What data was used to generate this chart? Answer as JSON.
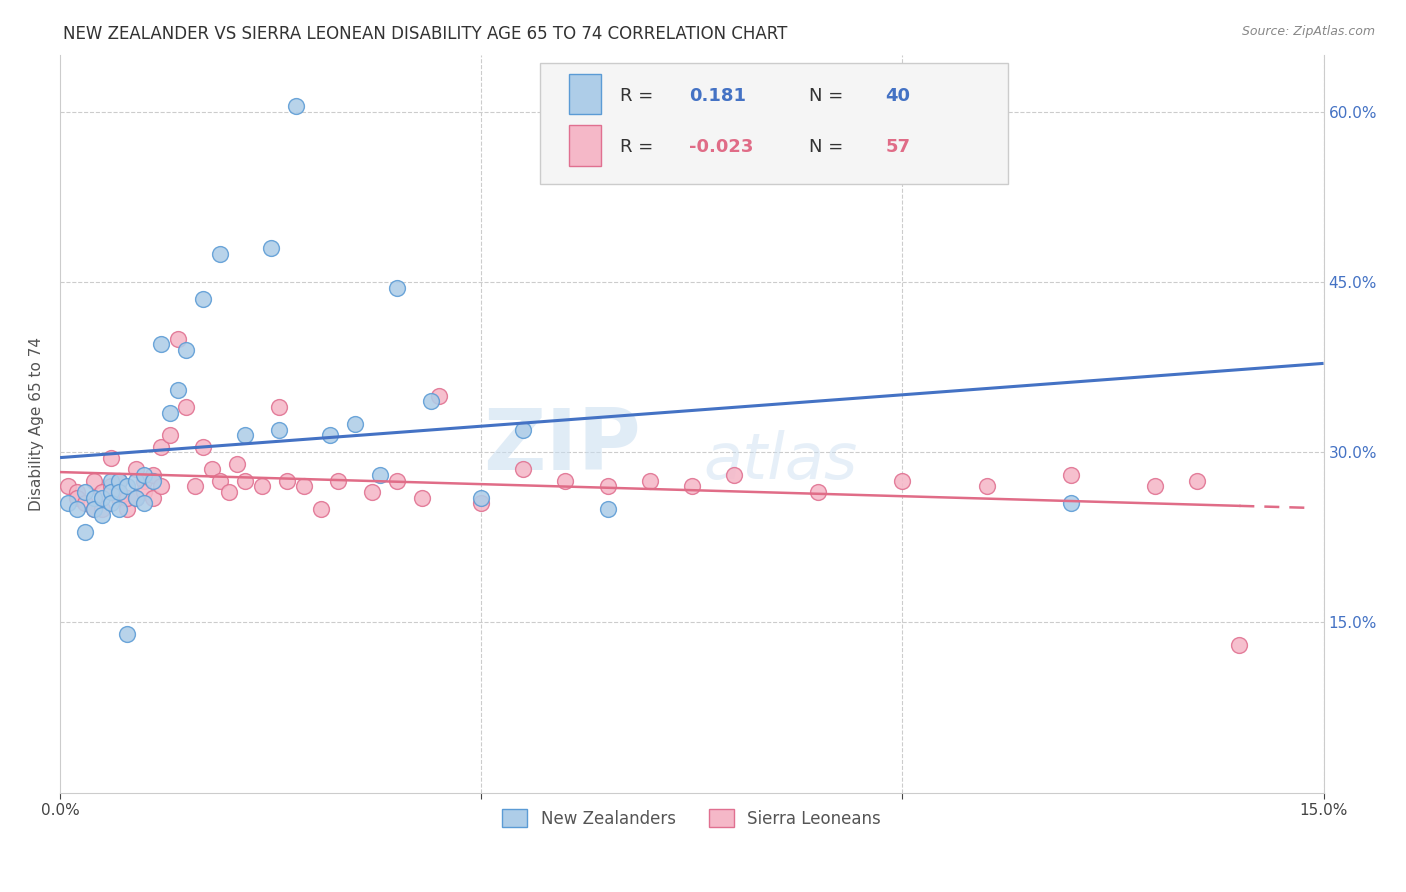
{
  "title": "NEW ZEALANDER VS SIERRA LEONEAN DISABILITY AGE 65 TO 74 CORRELATION CHART",
  "source": "Source: ZipAtlas.com",
  "ylabel": "Disability Age 65 to 74",
  "xlim": [
    0.0,
    0.15
  ],
  "ylim": [
    0.0,
    0.65
  ],
  "nz_color_face": "#aecde8",
  "nz_color_edge": "#5b9bd5",
  "sl_color_face": "#f5b8c8",
  "sl_color_edge": "#e07090",
  "nz_line_color": "#4472c4",
  "sl_line_color": "#e06c87",
  "legend_r_nz": " 0.181",
  "legend_n_nz": "40",
  "legend_r_sl": "-0.023",
  "legend_n_sl": "57",
  "nz_x": [
    0.001,
    0.002,
    0.003,
    0.003,
    0.004,
    0.004,
    0.005,
    0.005,
    0.006,
    0.006,
    0.006,
    0.007,
    0.007,
    0.007,
    0.008,
    0.008,
    0.009,
    0.009,
    0.01,
    0.01,
    0.011,
    0.012,
    0.013,
    0.014,
    0.015,
    0.017,
    0.019,
    0.022,
    0.025,
    0.026,
    0.028,
    0.032,
    0.035,
    0.038,
    0.04,
    0.044,
    0.05,
    0.055,
    0.065,
    0.12
  ],
  "nz_y": [
    0.255,
    0.25,
    0.23,
    0.265,
    0.26,
    0.25,
    0.245,
    0.26,
    0.275,
    0.265,
    0.255,
    0.275,
    0.265,
    0.25,
    0.14,
    0.27,
    0.275,
    0.26,
    0.28,
    0.255,
    0.275,
    0.395,
    0.335,
    0.355,
    0.39,
    0.435,
    0.475,
    0.315,
    0.48,
    0.32,
    0.605,
    0.315,
    0.325,
    0.28,
    0.445,
    0.345,
    0.26,
    0.32,
    0.25,
    0.255
  ],
  "sl_x": [
    0.001,
    0.002,
    0.002,
    0.003,
    0.004,
    0.004,
    0.005,
    0.005,
    0.006,
    0.006,
    0.007,
    0.007,
    0.007,
    0.008,
    0.008,
    0.009,
    0.009,
    0.01,
    0.01,
    0.011,
    0.011,
    0.012,
    0.012,
    0.013,
    0.014,
    0.015,
    0.016,
    0.017,
    0.018,
    0.019,
    0.02,
    0.021,
    0.022,
    0.024,
    0.026,
    0.027,
    0.029,
    0.031,
    0.033,
    0.037,
    0.04,
    0.043,
    0.045,
    0.05,
    0.055,
    0.06,
    0.065,
    0.07,
    0.075,
    0.08,
    0.09,
    0.1,
    0.11,
    0.12,
    0.13,
    0.135,
    0.14
  ],
  "sl_y": [
    0.27,
    0.265,
    0.26,
    0.255,
    0.275,
    0.25,
    0.265,
    0.25,
    0.295,
    0.27,
    0.275,
    0.26,
    0.265,
    0.25,
    0.26,
    0.285,
    0.26,
    0.275,
    0.265,
    0.28,
    0.26,
    0.305,
    0.27,
    0.315,
    0.4,
    0.34,
    0.27,
    0.305,
    0.285,
    0.275,
    0.265,
    0.29,
    0.275,
    0.27,
    0.34,
    0.275,
    0.27,
    0.25,
    0.275,
    0.265,
    0.275,
    0.26,
    0.35,
    0.255,
    0.285,
    0.275,
    0.27,
    0.275,
    0.27,
    0.28,
    0.265,
    0.275,
    0.27,
    0.28,
    0.27,
    0.275,
    0.13
  ]
}
